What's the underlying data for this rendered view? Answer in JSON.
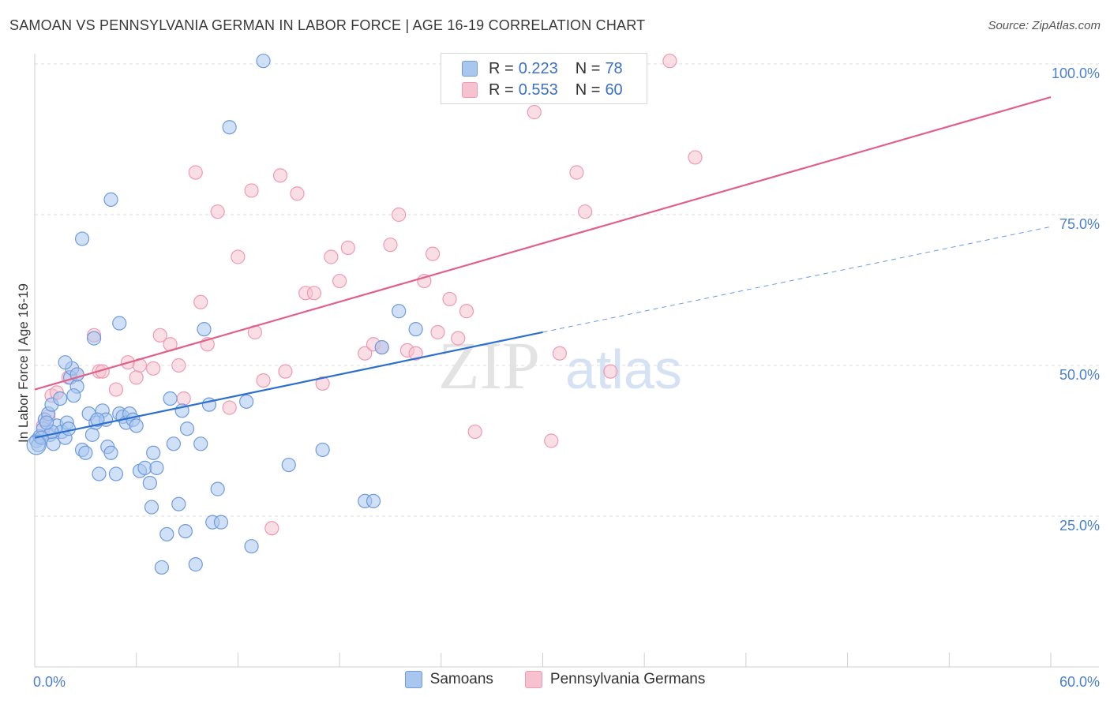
{
  "title": "SAMOAN VS PENNSYLVANIA GERMAN IN LABOR FORCE | AGE 16-19 CORRELATION CHART",
  "source": "Source: ZipAtlas.com",
  "watermark": {
    "zip": "ZIP",
    "atlas": "atlas"
  },
  "legend": {
    "r_label": "R =",
    "n_label": "N =",
    "rows": [
      {
        "r": "0.223",
        "n": "78",
        "color": "#a9c6ee"
      },
      {
        "r": "0.553",
        "n": "60",
        "color": "#f6b8c8"
      }
    ]
  },
  "bottom_legend": [
    "Samoans",
    "Pennsylvania Germans"
  ],
  "colors": {
    "samoans_fill": "#a9c6ee",
    "samoans_stroke": "#6f9bdc",
    "samoans_line": "#2c6fcf",
    "pg_fill": "#f6c2d0",
    "pg_stroke": "#ee9ab2",
    "pg_line": "#e0608a",
    "tick_text": "#4a7fd0",
    "grid": "#dddddd"
  },
  "chart_data": {
    "type": "scatter",
    "title": "SAMOAN VS PENNSYLVANIA GERMAN IN LABOR FORCE | AGE 16-19 CORRELATION CHART",
    "xlabel": "",
    "ylabel": "In Labor Force | Age 16-19",
    "xlim": [
      0,
      60
    ],
    "ylim": [
      0,
      105
    ],
    "x_tick_labels": [
      "0.0%",
      "60.0%"
    ],
    "y_ticks": [
      25,
      50,
      75,
      100
    ],
    "y_tick_labels": [
      "25.0%",
      "50.0%",
      "75.0%",
      "100.0%"
    ],
    "grid": true,
    "legend_position": "top-center",
    "series": [
      {
        "name": "Samoans",
        "r": 0.223,
        "n": 78,
        "trend": {
          "x": [
            0,
            30
          ],
          "y": [
            38.0,
            55.5
          ]
        },
        "trend_extension": {
          "x": [
            30,
            60
          ],
          "y": [
            55.5,
            73.0
          ]
        },
        "points": [
          [
            0.1,
            37.5
          ],
          [
            0.2,
            36.8
          ],
          [
            0.3,
            38.2
          ],
          [
            0.5,
            39.5
          ],
          [
            0.6,
            41.0
          ],
          [
            0.8,
            42.0
          ],
          [
            0.9,
            38.5
          ],
          [
            1.0,
            43.5
          ],
          [
            1.1,
            37.0
          ],
          [
            1.3,
            40.0
          ],
          [
            1.5,
            44.5
          ],
          [
            1.6,
            39.0
          ],
          [
            1.8,
            38.0
          ],
          [
            1.9,
            40.5
          ],
          [
            2.0,
            39.5
          ],
          [
            2.1,
            48.0
          ],
          [
            2.2,
            49.5
          ],
          [
            2.5,
            46.5
          ],
          [
            2.8,
            36.0
          ],
          [
            3.0,
            35.5
          ],
          [
            3.2,
            42.0
          ],
          [
            3.4,
            38.5
          ],
          [
            3.6,
            40.5
          ],
          [
            3.8,
            32.0
          ],
          [
            4.0,
            42.5
          ],
          [
            4.2,
            41.0
          ],
          [
            4.3,
            36.5
          ],
          [
            4.5,
            35.5
          ],
          [
            4.8,
            32.0
          ],
          [
            5.0,
            42.0
          ],
          [
            5.2,
            41.5
          ],
          [
            5.4,
            40.5
          ],
          [
            5.6,
            42.0
          ],
          [
            5.8,
            41.0
          ],
          [
            6.0,
            40.0
          ],
          [
            6.2,
            32.5
          ],
          [
            6.5,
            33.0
          ],
          [
            6.8,
            30.5
          ],
          [
            6.9,
            26.5
          ],
          [
            7.0,
            35.5
          ],
          [
            7.2,
            33.0
          ],
          [
            7.5,
            16.5
          ],
          [
            7.8,
            22.0
          ],
          [
            8.0,
            44.5
          ],
          [
            8.2,
            37.0
          ],
          [
            8.5,
            27.0
          ],
          [
            8.7,
            42.5
          ],
          [
            8.9,
            22.5
          ],
          [
            9.0,
            39.5
          ],
          [
            9.5,
            17.0
          ],
          [
            9.8,
            37.0
          ],
          [
            10.0,
            56.0
          ],
          [
            10.3,
            43.5
          ],
          [
            10.5,
            24.0
          ],
          [
            10.8,
            29.5
          ],
          [
            11.0,
            24.0
          ],
          [
            11.5,
            89.5
          ],
          [
            12.5,
            44.0
          ],
          [
            12.8,
            20.0
          ],
          [
            13.5,
            100.5
          ],
          [
            15.0,
            33.5
          ],
          [
            17.0,
            36.0
          ],
          [
            19.5,
            27.5
          ],
          [
            20.0,
            27.5
          ],
          [
            20.5,
            53.0
          ],
          [
            21.5,
            59.0
          ],
          [
            22.5,
            56.0
          ],
          [
            3.5,
            54.5
          ],
          [
            4.5,
            77.5
          ],
          [
            5.0,
            57.0
          ],
          [
            2.8,
            71.0
          ],
          [
            1.8,
            50.5
          ],
          [
            2.5,
            48.5
          ],
          [
            1.0,
            39.0
          ],
          [
            0.4,
            38.0
          ],
          [
            0.7,
            40.5
          ],
          [
            2.3,
            45.0
          ],
          [
            3.7,
            41.0
          ]
        ]
      },
      {
        "name": "Pennsylvania Germans",
        "r": 0.553,
        "n": 60,
        "trend": {
          "x": [
            0,
            60
          ],
          "y": [
            46.0,
            94.5
          ]
        },
        "points": [
          [
            0.5,
            40.0
          ],
          [
            0.8,
            41.5
          ],
          [
            1.0,
            45.0
          ],
          [
            1.3,
            45.5
          ],
          [
            2.0,
            48.0
          ],
          [
            2.5,
            48.5
          ],
          [
            3.5,
            55.0
          ],
          [
            3.8,
            49.0
          ],
          [
            4.0,
            49.0
          ],
          [
            4.8,
            46.0
          ],
          [
            5.5,
            50.5
          ],
          [
            6.0,
            48.0
          ],
          [
            6.2,
            50.0
          ],
          [
            7.0,
            49.5
          ],
          [
            7.4,
            55.0
          ],
          [
            8.0,
            53.5
          ],
          [
            8.5,
            50.0
          ],
          [
            8.8,
            44.5
          ],
          [
            9.5,
            82.0
          ],
          [
            9.8,
            60.5
          ],
          [
            10.2,
            53.5
          ],
          [
            10.8,
            75.5
          ],
          [
            11.5,
            43.0
          ],
          [
            12.0,
            68.0
          ],
          [
            12.8,
            79.0
          ],
          [
            13.0,
            55.5
          ],
          [
            13.5,
            47.5
          ],
          [
            14.0,
            23.0
          ],
          [
            14.5,
            81.5
          ],
          [
            14.8,
            49.0
          ],
          [
            15.5,
            78.5
          ],
          [
            16.0,
            62.0
          ],
          [
            16.5,
            62.0
          ],
          [
            17.0,
            47.0
          ],
          [
            17.5,
            68.0
          ],
          [
            18.0,
            64.0
          ],
          [
            18.5,
            69.5
          ],
          [
            19.5,
            52.0
          ],
          [
            20.0,
            53.5
          ],
          [
            20.5,
            53.0
          ],
          [
            21.0,
            70.0
          ],
          [
            21.5,
            75.0
          ],
          [
            22.0,
            52.5
          ],
          [
            22.5,
            52.0
          ],
          [
            23.0,
            64.0
          ],
          [
            23.5,
            68.5
          ],
          [
            23.8,
            55.5
          ],
          [
            24.5,
            61.0
          ],
          [
            25.0,
            54.5
          ],
          [
            25.5,
            59.0
          ],
          [
            26.0,
            39.0
          ],
          [
            27.5,
            100.5
          ],
          [
            29.5,
            92.0
          ],
          [
            30.5,
            37.5
          ],
          [
            31.0,
            52.0
          ],
          [
            32.0,
            82.0
          ],
          [
            32.5,
            75.5
          ],
          [
            34.0,
            49.0
          ],
          [
            37.5,
            100.5
          ],
          [
            39.0,
            84.5
          ]
        ]
      }
    ]
  }
}
